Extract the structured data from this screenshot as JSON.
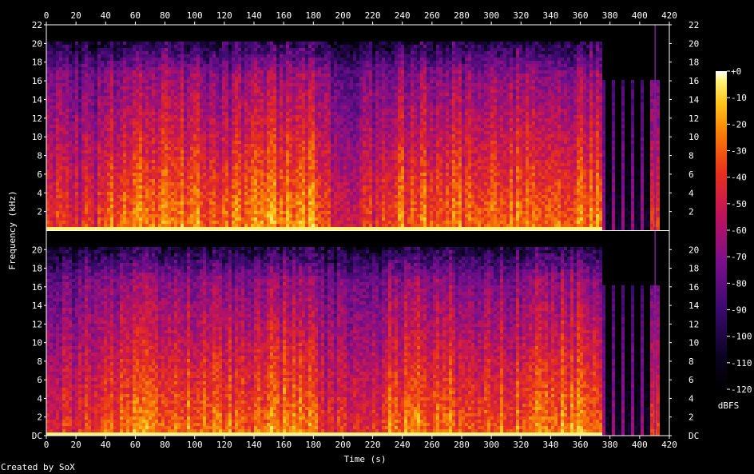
{
  "chart_data": {
    "type": "heatmap",
    "title": "",
    "xlabel": "Time (s)",
    "ylabel": "Frequency (kHz)",
    "x_ticks": [
      "0",
      "20",
      "40",
      "60",
      "80",
      "100",
      "120",
      "140",
      "160",
      "180",
      "200",
      "220",
      "240",
      "260",
      "280",
      "300",
      "320",
      "340",
      "360",
      "380",
      "400",
      "420"
    ],
    "xlim": [
      0,
      420
    ],
    "y_ticks_top": [
      "2",
      "4",
      "6",
      "8",
      "10",
      "12",
      "14",
      "16",
      "18",
      "20",
      "22"
    ],
    "y_ticks_bottom": [
      "DC",
      "2",
      "4",
      "6",
      "8",
      "10",
      "12",
      "14",
      "16",
      "18",
      "20"
    ],
    "ylim_khz": [
      0,
      22
    ],
    "channels": 2,
    "audio_end_s": 373,
    "lowpass_khz_main": 20,
    "lowpass_khz_tail": 16,
    "tail_marker_s": 410,
    "segments": [
      {
        "start": 0,
        "end": 37,
        "level": 0.35
      },
      {
        "start": 37,
        "end": 107,
        "level": 0.65
      },
      {
        "start": 107,
        "end": 143,
        "level": 0.62
      },
      {
        "start": 143,
        "end": 182,
        "level": 0.72
      },
      {
        "start": 182,
        "end": 225,
        "level": 0.35
      },
      {
        "start": 225,
        "end": 260,
        "level": 0.62
      },
      {
        "start": 260,
        "end": 329,
        "level": 0.6
      },
      {
        "start": 329,
        "end": 373,
        "level": 0.68
      },
      {
        "start": 373,
        "end": 405,
        "level": 0.12
      },
      {
        "start": 405,
        "end": 413,
        "level": 0.45
      }
    ],
    "colorbar": {
      "unit": "dBFS",
      "ticks": [
        "+0",
        "-10",
        "-20",
        "-30",
        "-40",
        "-50",
        "-60",
        "-70",
        "-80",
        "-90",
        "-100",
        "-110",
        "-120"
      ],
      "range_db": [
        -120,
        0
      ]
    }
  },
  "footer": {
    "credit": "Created by SoX"
  }
}
